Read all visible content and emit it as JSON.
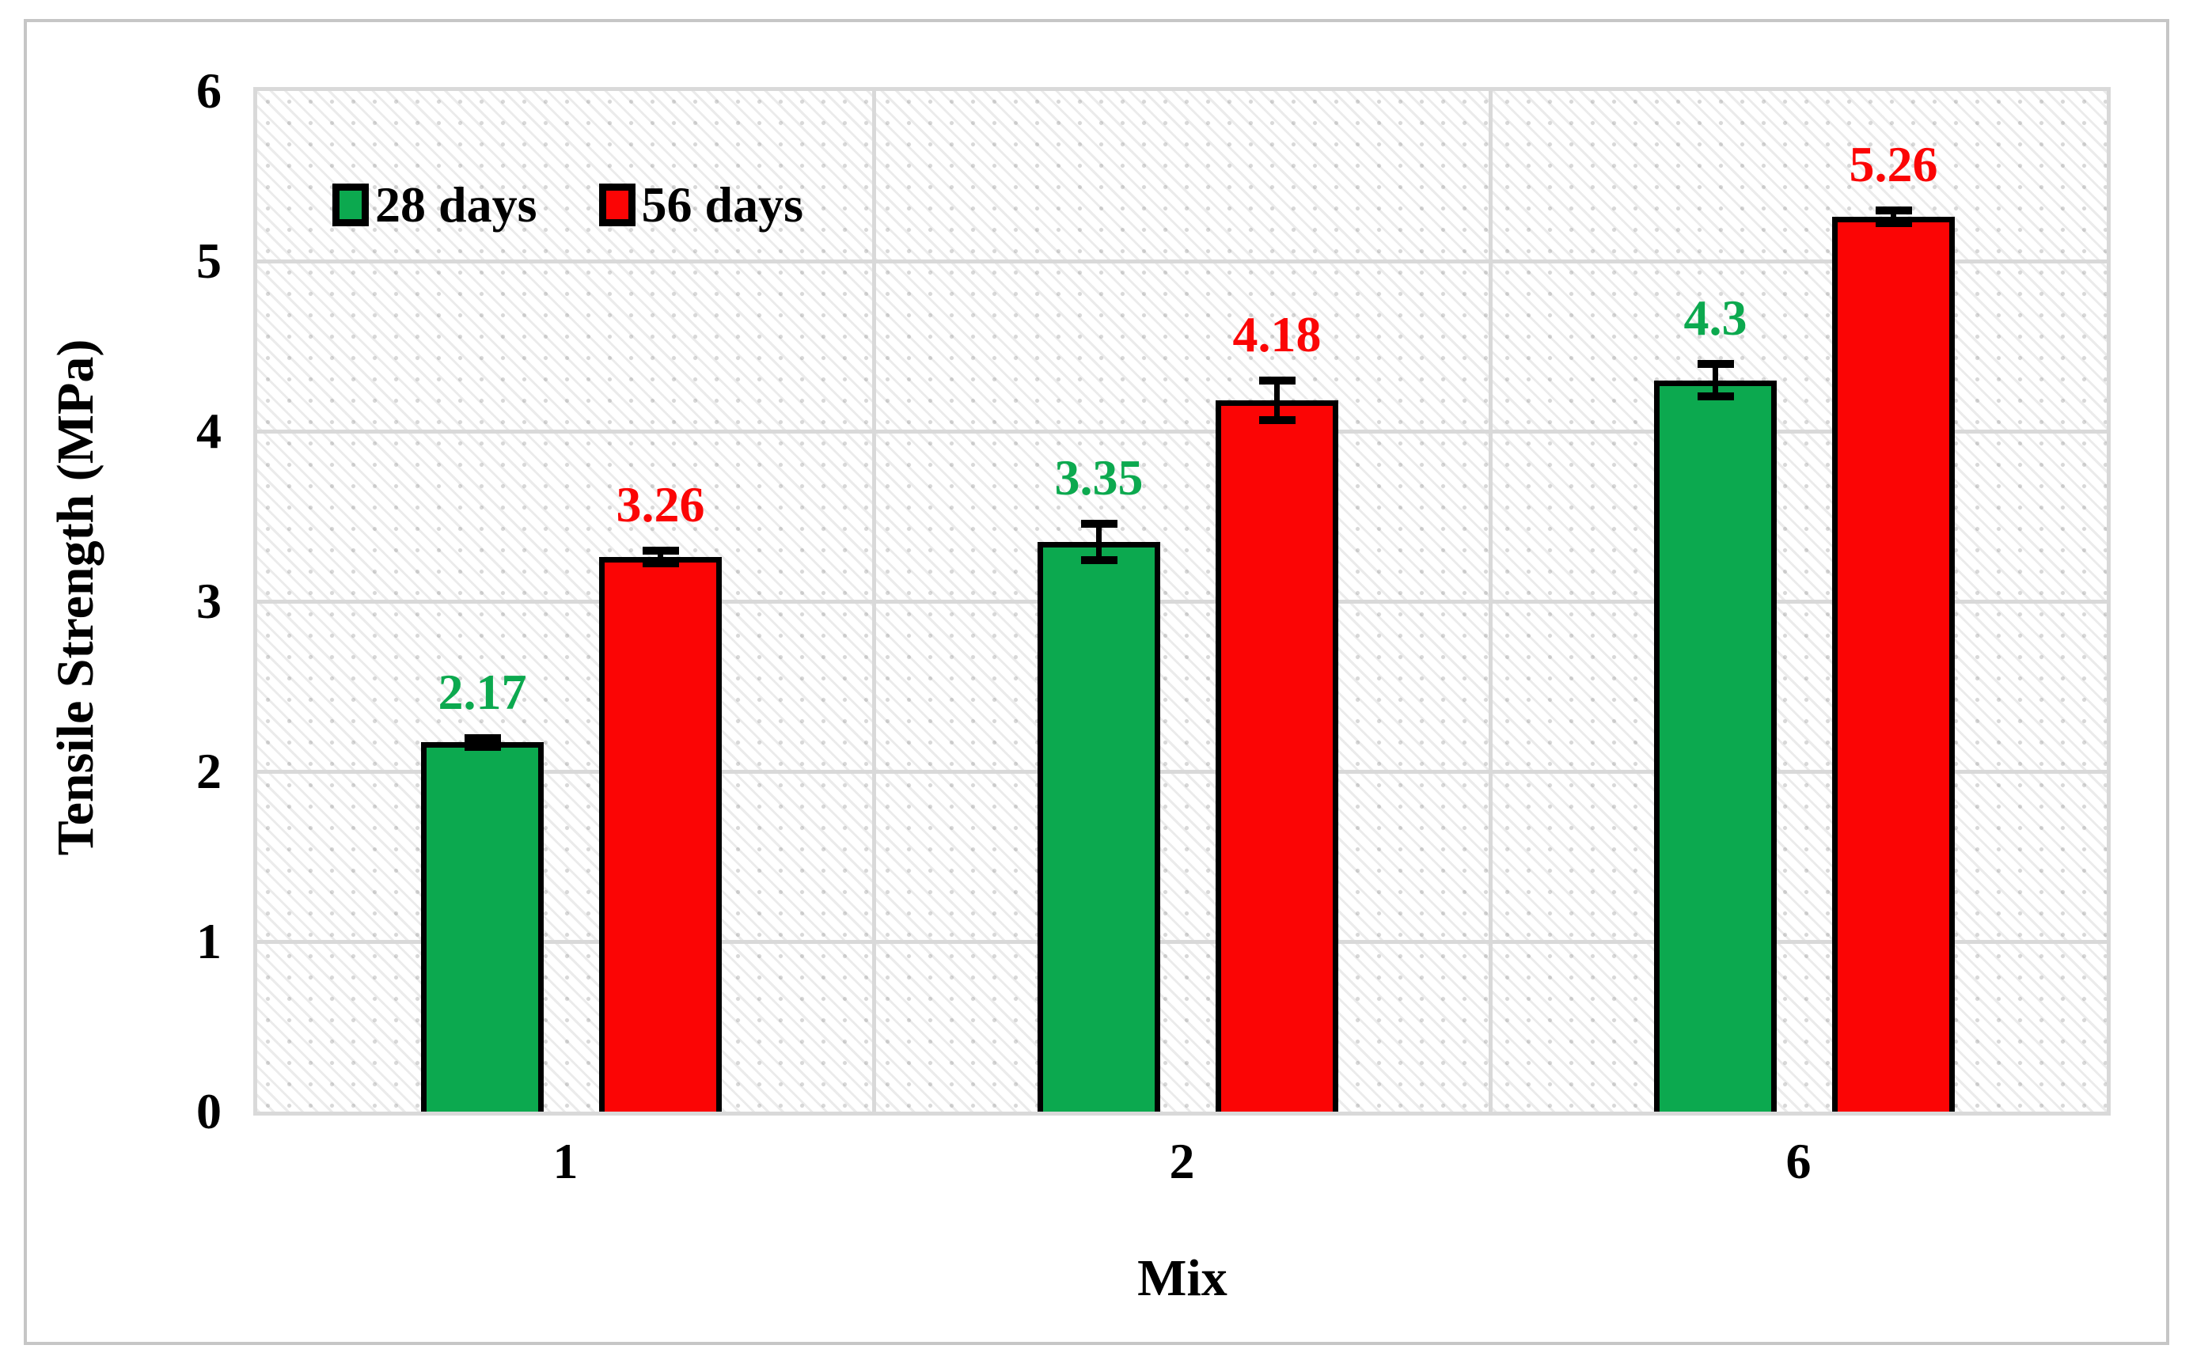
{
  "chart_data": {
    "type": "bar",
    "title": "",
    "xlabel": "Mix",
    "ylabel": "Tensile Strength (MPa)",
    "ylim": [
      0,
      6
    ],
    "yticks": [
      "0",
      "1",
      "2",
      "3",
      "4",
      "5",
      "6"
    ],
    "categories": [
      "1",
      "2",
      "6"
    ],
    "series": [
      {
        "name": "28 days",
        "color": "#0CA94F",
        "label_color": "#0CA94F",
        "values": [
          2.17,
          3.35,
          4.3
        ],
        "value_labels": [
          "2.17",
          "3.35",
          "4.3"
        ],
        "errors": [
          0.05,
          0.13,
          0.12
        ]
      },
      {
        "name": "56 days",
        "color": "#FB0505",
        "label_color": "#FB0505",
        "values": [
          3.26,
          4.18,
          5.26
        ],
        "value_labels": [
          "3.26",
          "4.18",
          "5.26"
        ],
        "errors": [
          0.06,
          0.14,
          0.06
        ]
      }
    ],
    "legend": {
      "position": "top-left",
      "items": [
        "28 days",
        "56 days"
      ]
    },
    "grid": {
      "horizontal": true,
      "category_separators": true,
      "color": "#D9D9D9"
    }
  },
  "style": {
    "bar_border_color": "#000000",
    "error_bar_color": "#000000",
    "frame_border_color": "#C6C6C6",
    "grid_color": "#D9D9D9",
    "text_color": "#000000",
    "plot_background": "white with light gray dotted diagonal hatch"
  }
}
